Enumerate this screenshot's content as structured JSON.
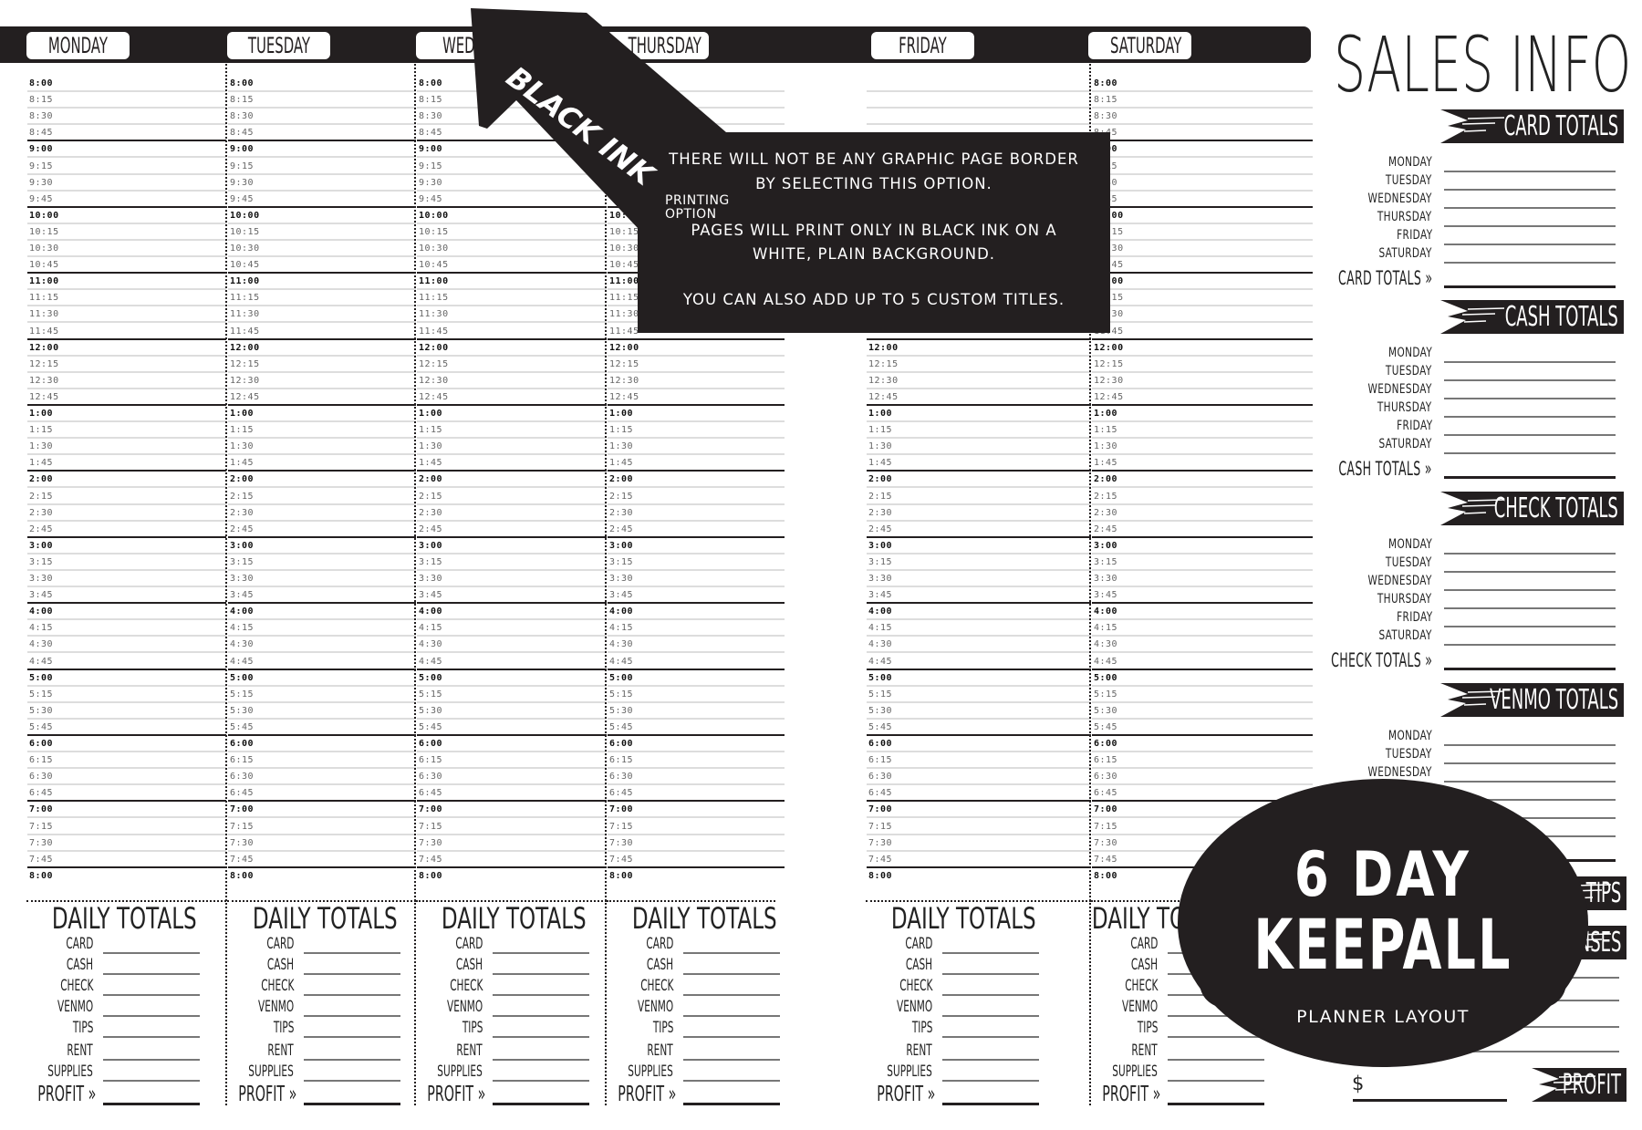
{
  "days": [
    {
      "label": "MONDAY"
    },
    {
      "label": "TUESDAY"
    },
    {
      "label": "WEDNESDAY"
    },
    {
      "label": "THURSDAY"
    },
    {
      "label": "FRIDAY"
    },
    {
      "label": "SATURDAY"
    }
  ],
  "times": [
    "8:00",
    "8:15",
    "8:30",
    "8:45",
    "9:00",
    "9:15",
    "9:30",
    "9:45",
    "10:00",
    "10:15",
    "10:30",
    "10:45",
    "11:00",
    "11:15",
    "11:30",
    "11:45",
    "12:00",
    "12:15",
    "12:30",
    "12:45",
    "1:00",
    "1:15",
    "1:30",
    "1:45",
    "2:00",
    "2:15",
    "2:30",
    "2:45",
    "3:00",
    "3:15",
    "3:30",
    "3:45",
    "4:00",
    "4:15",
    "4:30",
    "4:45",
    "5:00",
    "5:15",
    "5:30",
    "5:45",
    "6:00",
    "6:15",
    "6:30",
    "6:45",
    "7:00",
    "7:15",
    "7:30",
    "7:45",
    "8:00"
  ],
  "daily_totals": {
    "title": "DAILY TOTALS",
    "rows": [
      "CARD",
      "CASH",
      "CHECK",
      "VENMO",
      "TIPS",
      "RENT",
      "SUPPLIES"
    ],
    "profit_label": "PROFIT »"
  },
  "overlay": {
    "arrow_title": "BLACK INK",
    "arrow_subtitle": "PRINTING OPTION",
    "lines": [
      "THERE WILL NOT BE ANY GRAPHIC PAGE BORDER",
      "BY SELECTING THIS OPTION.",
      "PAGES WILL PRINT ONLY IN BLACK INK ON A",
      "WHITE, PLAIN BACKGROUND.",
      "YOU CAN ALSO ADD UP TO 5 CUSTOM TITLES."
    ]
  },
  "sales": {
    "title": "SALES INFO",
    "sections": [
      {
        "heading": "CARD TOTALS",
        "days": [
          "MONDAY",
          "TUESDAY",
          "WEDNESDAY",
          "THURSDAY",
          "FRIDAY",
          "SATURDAY"
        ],
        "total_label": "CARD TOTALS »"
      },
      {
        "heading": "CASH TOTALS",
        "days": [
          "MONDAY",
          "TUESDAY",
          "WEDNESDAY",
          "THURSDAY",
          "FRIDAY",
          "SATURDAY"
        ],
        "total_label": "CASH TOTALS »"
      },
      {
        "heading": "CHECK TOTALS",
        "days": [
          "MONDAY",
          "TUESDAY",
          "WEDNESDAY",
          "THURSDAY",
          "FRIDAY",
          "SATURDAY"
        ],
        "total_label": "CHECK TOTALS »"
      },
      {
        "heading": "VENMO TOTALS",
        "days": [
          "MONDAY",
          "TUESDAY",
          "WEDNESDAY"
        ]
      }
    ],
    "tips_heading": "TIPS",
    "expenses_heading": "NSES",
    "currency": "$",
    "profit_heading": "PROFIT"
  },
  "badge": {
    "line1": "6 DAY",
    "line2": "KEEPALL",
    "line3": "PLANNER LAYOUT"
  },
  "colors": {
    "ink": "#231f20",
    "rule": "#dddddd"
  }
}
